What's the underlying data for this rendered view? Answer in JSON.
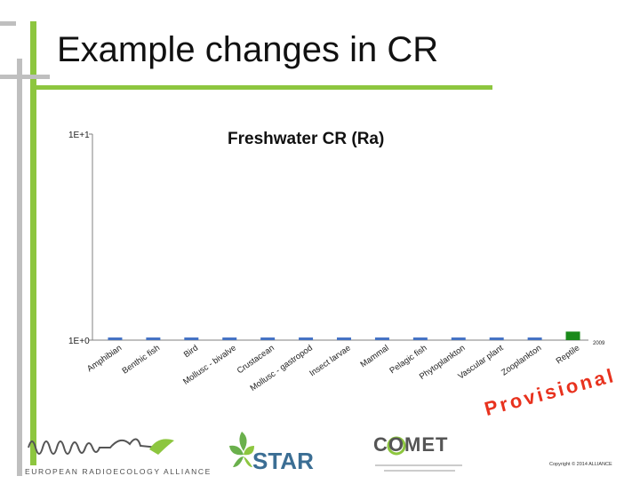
{
  "slide": {
    "title": "Example changes in CR",
    "watermark": "Provisional",
    "copyright": "Copyright © 2014 ALLIANCE"
  },
  "logos": {
    "era": "EUROPEAN RADIOECOLOGY ALLIANCE",
    "star": "STAR",
    "comet": "COMET"
  },
  "colors": {
    "frame_green": "#8dc63f",
    "frame_gray": "#bfbfbf",
    "bar_blue": "#4472c4",
    "bar_green": "#1a8a1a",
    "watermark_red": "#e8321e"
  },
  "chart_data": {
    "type": "bar",
    "title": "Freshwater CR (Ra)",
    "yscale": "log",
    "yticks": [
      "1E+1",
      "1E+0"
    ],
    "ylim": [
      1,
      10
    ],
    "legend": "2009",
    "categories": [
      "Amphibian",
      "Benthic fish",
      "Bird",
      "Mollusc - bivalve",
      "Crustacean",
      "Mollusc - gastropod",
      "Insect larvae",
      "Mammal",
      "Pelagic fish",
      "Phytoplankton",
      "Vascular plant",
      "Zooplankton",
      "Reptile"
    ],
    "series": [
      {
        "name": "2009",
        "values": [
          1.03,
          1.03,
          1.03,
          1.03,
          1.03,
          1.03,
          1.03,
          1.03,
          1.03,
          1.03,
          1.03,
          1.03,
          1.1
        ],
        "colors": [
          "#4472c4",
          "#4472c4",
          "#4472c4",
          "#4472c4",
          "#4472c4",
          "#4472c4",
          "#4472c4",
          "#4472c4",
          "#4472c4",
          "#4472c4",
          "#4472c4",
          "#4472c4",
          "#1a8a1a"
        ]
      }
    ],
    "grid": false
  }
}
